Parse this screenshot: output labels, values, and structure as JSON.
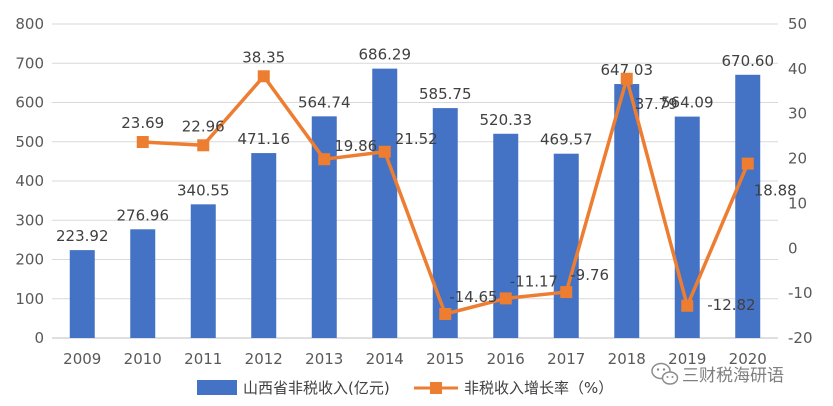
{
  "chart_data": {
    "type": "bar+line",
    "categories": [
      "2009",
      "2010",
      "2011",
      "2012",
      "2013",
      "2014",
      "2015",
      "2016",
      "2017",
      "2018",
      "2019",
      "2020"
    ],
    "series": [
      {
        "name": "山西省非税收入(亿元)",
        "type": "bar",
        "axis": "left",
        "color": "#4472c4",
        "values": [
          223.92,
          276.96,
          340.55,
          471.16,
          564.74,
          686.29,
          585.75,
          520.33,
          469.57,
          647.03,
          564.09,
          670.6
        ],
        "labels": [
          "223.92",
          "276.96",
          "340.55",
          "471.16",
          "564.74",
          "686.29",
          "585.75",
          "520.33",
          "469.57",
          "647.03",
          "564.09",
          "670.60"
        ]
      },
      {
        "name": "非税收入增长率（%）",
        "type": "line",
        "axis": "right",
        "color": "#ed7d31",
        "values": [
          null,
          23.69,
          22.96,
          38.35,
          19.86,
          21.52,
          -14.65,
          -11.17,
          -9.76,
          37.79,
          -12.82,
          18.88
        ],
        "labels": [
          "",
          "23.69",
          "22.96",
          "38.35",
          "19.86",
          "21.52",
          "-14.65",
          "-11.17",
          "-9.76",
          "37.79",
          "-12.82",
          "18.88"
        ]
      }
    ],
    "y_left": {
      "min": 0,
      "max": 800,
      "ticks": [
        0,
        100,
        200,
        300,
        400,
        500,
        600,
        700,
        800
      ]
    },
    "y_right": {
      "min": -20,
      "max": 50,
      "ticks": [
        -20,
        -10,
        0,
        10,
        20,
        30,
        40,
        50
      ]
    },
    "grid": true,
    "legend": "bottom"
  },
  "watermark": {
    "text": "三财税海研语",
    "icon": "wechat-icon"
  }
}
